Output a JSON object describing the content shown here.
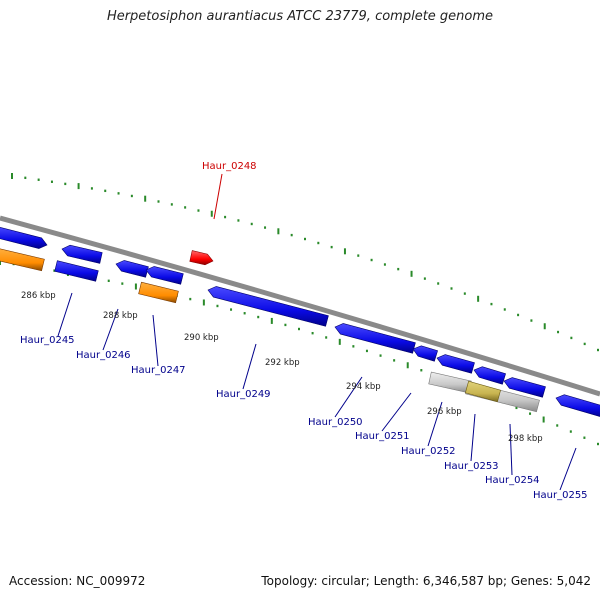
{
  "title": "Herpetosiphon aurantiacus ATCC 23779, complete genome",
  "footer": {
    "accession": "Accession: NC_009972",
    "summary": "Topology: circular; Length: 6,346,587 bp; Genes: 5,042"
  },
  "colors": {
    "backbone": "#8a8a8a",
    "forward_gene": "#0a0ae6",
    "reverse_gene": "#0a0ae6",
    "rna_gene": "#ff8c00",
    "selected_gene": "#ff0000",
    "pseudo_gene": "#c8c8c8",
    "overlap_gene": "#c8b450",
    "tick": "#2a8a2a",
    "gene_label": "#00008b",
    "selected_label": "#cc0000",
    "scale_label": "#222222"
  },
  "scale_labels": [
    "286 kbp",
    "288 kbp",
    "290 kbp",
    "292 kbp",
    "294 kbp",
    "296 kbp",
    "298 kbp"
  ],
  "genes": [
    {
      "label": "Haur_0245"
    },
    {
      "label": "Haur_0246"
    },
    {
      "label": "Haur_0247"
    },
    {
      "label": "Haur_0248",
      "selected": true
    },
    {
      "label": "Haur_0249"
    },
    {
      "label": "Haur_0250"
    },
    {
      "label": "Haur_0251"
    },
    {
      "label": "Haur_0252"
    },
    {
      "label": "Haur_0253"
    },
    {
      "label": "Haur_0254"
    },
    {
      "label": "Haur_0255"
    }
  ]
}
